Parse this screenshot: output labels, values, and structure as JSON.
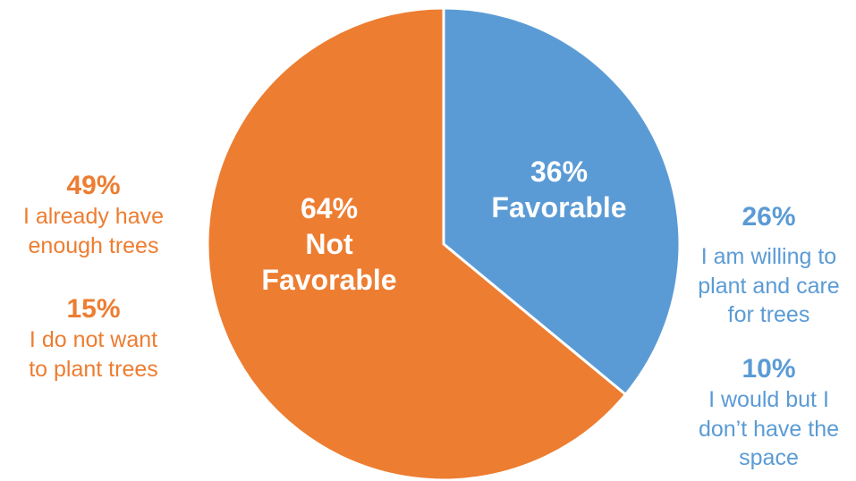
{
  "chart_data": {
    "type": "pie",
    "title": "",
    "slices": [
      {
        "label": "Favorable",
        "value": 36,
        "display": "36%",
        "color": "#5B9BD5"
      },
      {
        "label": "Not Favorable",
        "value": 64,
        "display": "64%",
        "color": "#ED7D31"
      }
    ],
    "slice_labels": {
      "favorable": {
        "pct": "36%",
        "text": "Favorable"
      },
      "not_favorable": {
        "pct": "64%",
        "line1": "Not",
        "line2": "Favorable"
      }
    },
    "annotations": {
      "enough_trees": {
        "pct": "49%",
        "line1": "I already have",
        "line2": "enough trees",
        "color": "#ED7D31"
      },
      "not_want": {
        "pct": "15%",
        "line1": "I do not want",
        "line2": "to plant trees",
        "color": "#ED7D31"
      },
      "willing": {
        "pct": "26%",
        "line1": "I am willing to",
        "line2": "plant and care",
        "line3": "for trees",
        "color": "#5B9BD5"
      },
      "no_space": {
        "pct": "10%",
        "line1": "I would but I",
        "line2": "don’t have the",
        "line3": "space",
        "color": "#5B9BD5"
      }
    },
    "legend": "none"
  }
}
